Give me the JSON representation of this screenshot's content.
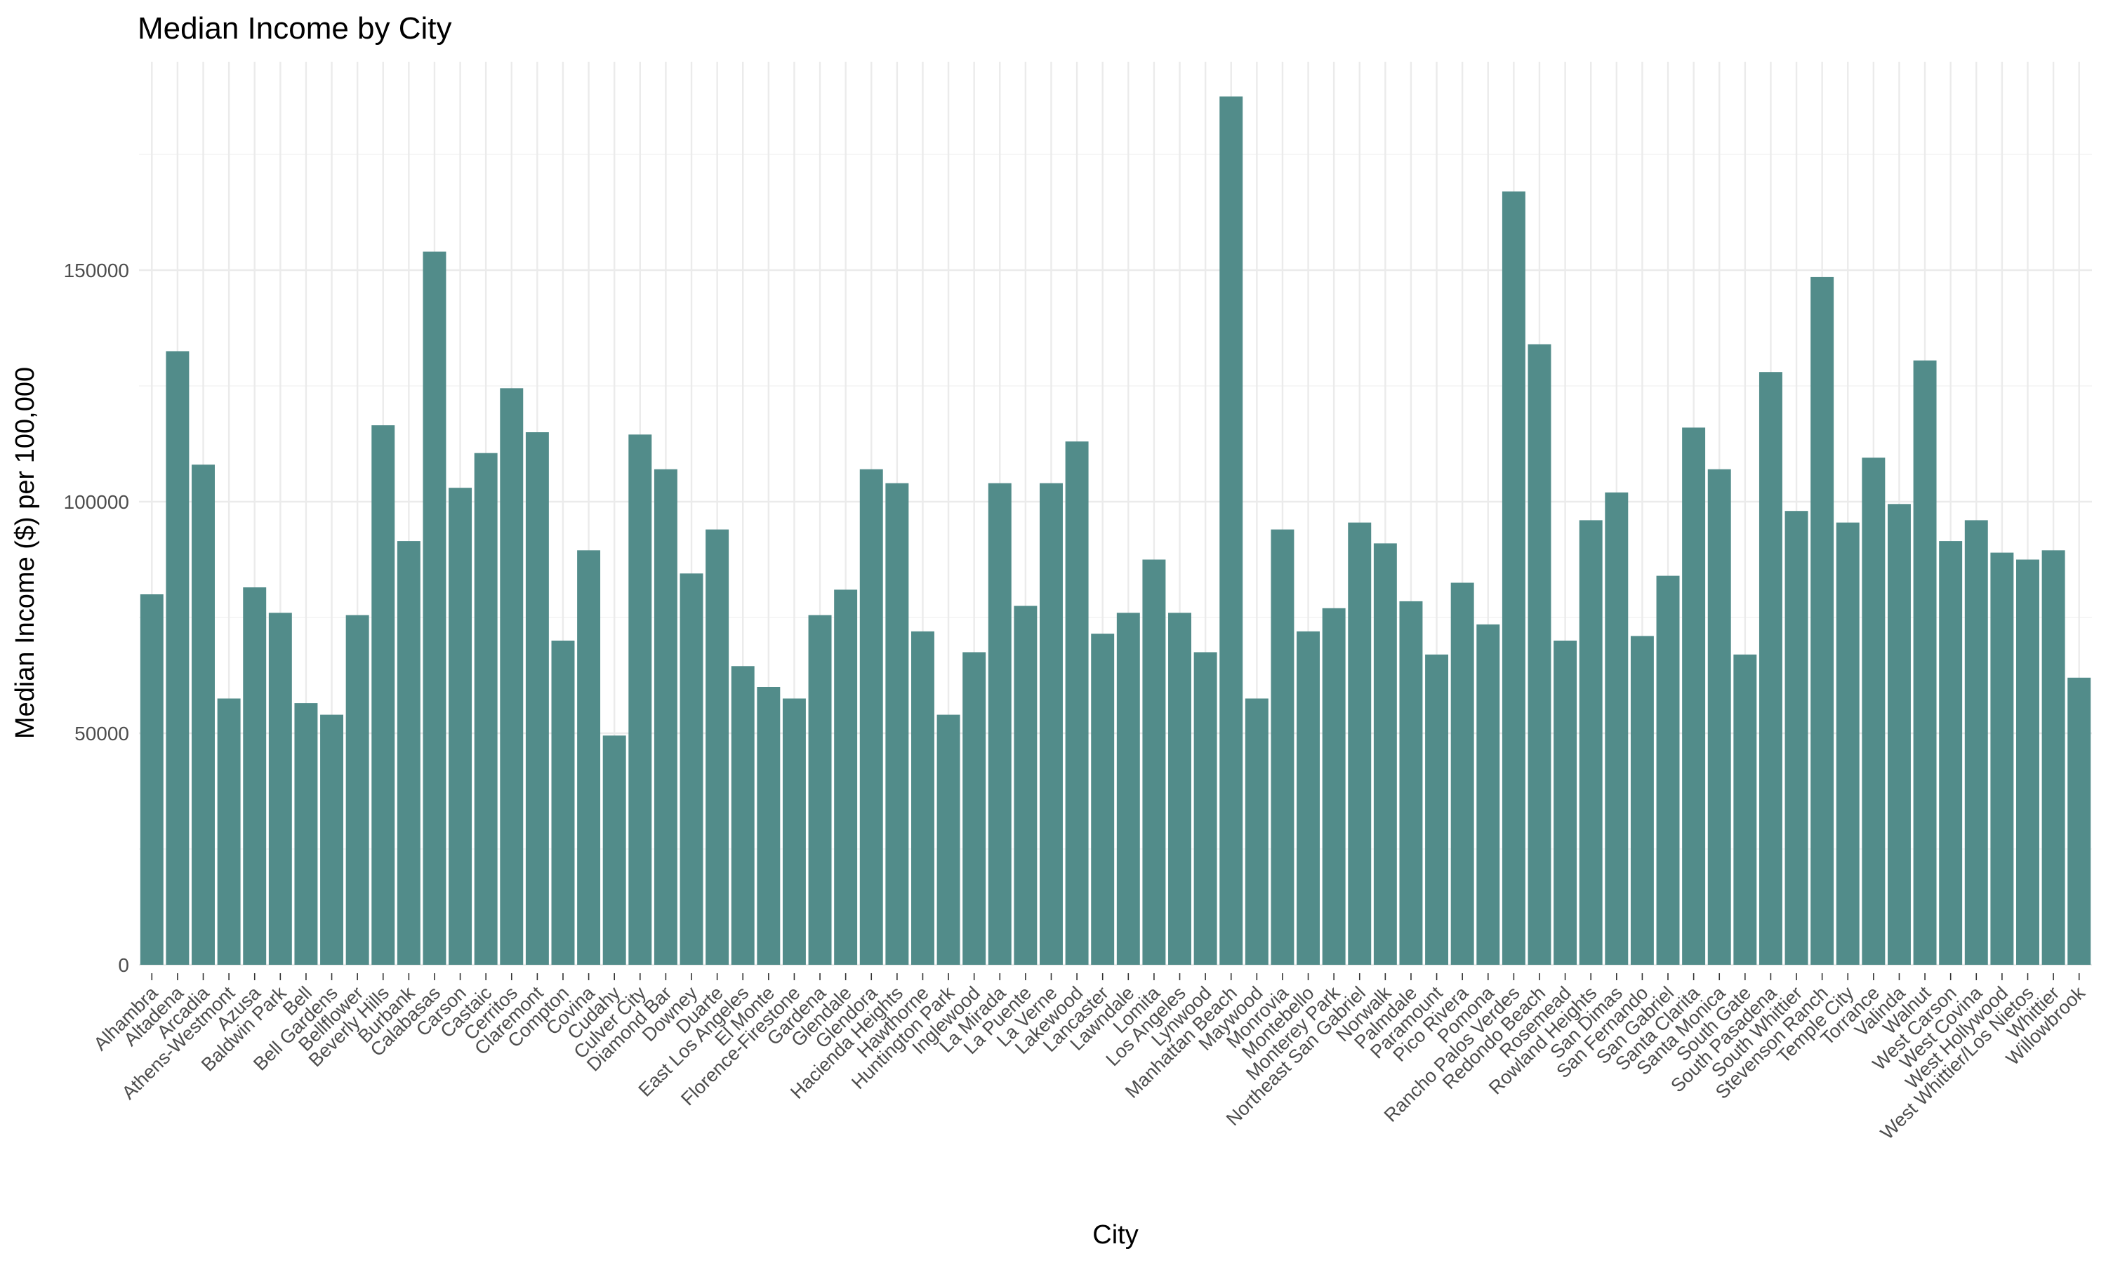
{
  "chart_data": {
    "type": "bar",
    "title": "Median Income by City",
    "xlabel": "City",
    "ylabel": "Median Income ($) per 100,000",
    "ylim": [
      0,
      195000
    ],
    "yticks": [
      0,
      50000,
      100000,
      150000
    ],
    "ytick_labels": [
      "0",
      "50000",
      "100000",
      "150000"
    ],
    "grid": true,
    "legend": "none",
    "bar_color": "#528c8a",
    "categories": [
      "Alhambra",
      "Altadena",
      "Arcadia",
      "Athens-Westmont",
      "Azusa",
      "Baldwin Park",
      "Bell",
      "Bell Gardens",
      "Bellflower",
      "Beverly Hills",
      "Burbank",
      "Calabasas",
      "Carson",
      "Castaic",
      "Cerritos",
      "Claremont",
      "Compton",
      "Covina",
      "Cudahy",
      "Culver City",
      "Diamond Bar",
      "Downey",
      "Duarte",
      "East Los Angeles",
      "El Monte",
      "Florence-Firestone",
      "Gardena",
      "Glendale",
      "Glendora",
      "Hacienda Heights",
      "Hawthorne",
      "Huntington Park",
      "Inglewood",
      "La Mirada",
      "La Puente",
      "La Verne",
      "Lakewood",
      "Lancaster",
      "Lawndale",
      "Lomita",
      "Los Angeles",
      "Lynwood",
      "Manhattan Beach",
      "Maywood",
      "Monrovia",
      "Montebello",
      "Monterey Park",
      "Northeast San Gabriel",
      "Norwalk",
      "Palmdale",
      "Paramount",
      "Pico Rivera",
      "Pomona",
      "Rancho Palos Verdes",
      "Redondo Beach",
      "Rosemead",
      "Rowland Heights",
      "San Dimas",
      "San Fernando",
      "San Gabriel",
      "Santa Clarita",
      "Santa Monica",
      "South Gate",
      "South Pasadena",
      "South Whittier",
      "Stevenson Ranch",
      "Temple City",
      "Torrance",
      "Valinda",
      "Walnut",
      "West Carson",
      "West Covina",
      "West Hollywood",
      "West Whittier/Los Nietos",
      "Whittier",
      "Willowbrook"
    ],
    "values": [
      80000,
      132500,
      108000,
      57500,
      81500,
      76000,
      56500,
      54000,
      75500,
      116500,
      91500,
      154000,
      103000,
      110500,
      124500,
      115000,
      70000,
      89500,
      49500,
      114500,
      107000,
      84500,
      94000,
      64500,
      60000,
      57500,
      75500,
      81000,
      107000,
      104000,
      72000,
      54000,
      67500,
      104000,
      77500,
      104000,
      113000,
      71500,
      76000,
      87500,
      76000,
      67500,
      187500,
      57500,
      94000,
      72000,
      77000,
      95500,
      91000,
      78500,
      67000,
      82500,
      73500,
      167000,
      134000,
      70000,
      96000,
      102000,
      71000,
      84000,
      116000,
      107000,
      67000,
      128000,
      98000,
      148500,
      95500,
      109500,
      99500,
      130500,
      91500,
      96000,
      89000,
      87500,
      89500,
      62000
    ]
  }
}
